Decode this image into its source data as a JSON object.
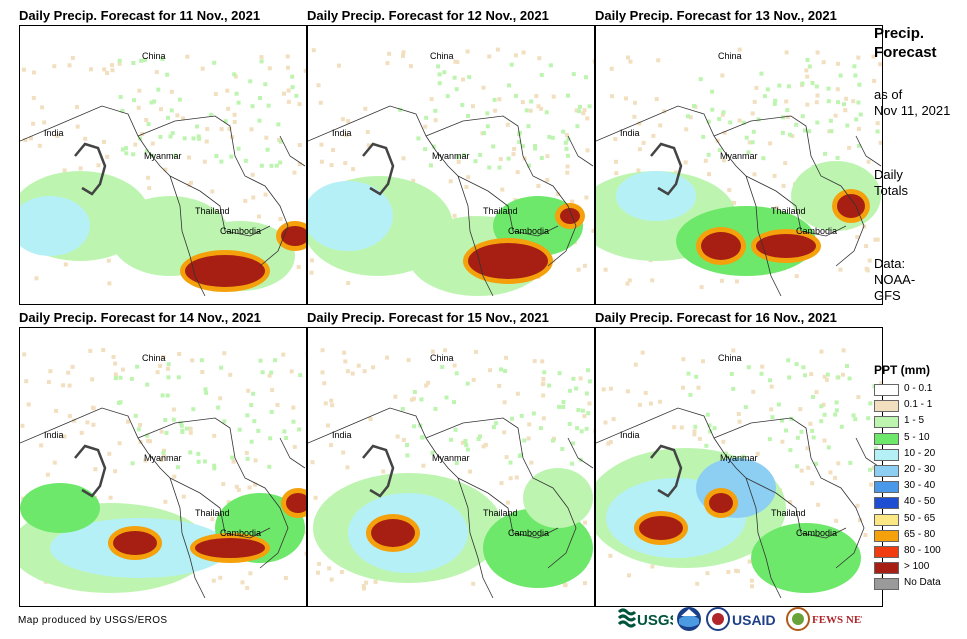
{
  "panels": [
    {
      "title": "Daily Precip. Forecast for 11 Nov., 2021"
    },
    {
      "title": "Daily Precip. Forecast for 12 Nov., 2021"
    },
    {
      "title": "Daily Precip. Forecast for 13 Nov., 2021"
    },
    {
      "title": "Daily Precip. Forecast for 14 Nov., 2021"
    },
    {
      "title": "Daily Precip. Forecast for 15 Nov., 2021"
    },
    {
      "title": "Daily Precip. Forecast for 16 Nov., 2021"
    }
  ],
  "map_labels": {
    "china": "China",
    "india": "India",
    "myanmar": "Myanmar",
    "thailand": "Thailand",
    "cambodia": "Cambodia"
  },
  "sidebar": {
    "title_line1": "Precip.",
    "title_line2": "Forecast",
    "asof_line1": "as of",
    "asof_line2": "Nov 11, 2021",
    "totals_line1": "Daily",
    "totals_line2": "Totals",
    "data_line1": "Data:",
    "data_line2": "NOAA-",
    "data_line3": "GFS"
  },
  "legend": {
    "title": "PPT (mm)",
    "items": [
      {
        "label": "0 - 0.1",
        "color": "#ffffff"
      },
      {
        "label": "0.1 - 1",
        "color": "#f2dfbf"
      },
      {
        "label": "1 - 5",
        "color": "#bdf5b0"
      },
      {
        "label": "5 - 10",
        "color": "#6ee86a"
      },
      {
        "label": "10 - 20",
        "color": "#b5f0f7"
      },
      {
        "label": "20 - 30",
        "color": "#8ccff2"
      },
      {
        "label": "30 - 40",
        "color": "#4a98ea"
      },
      {
        "label": "40 - 50",
        "color": "#1e4fd2"
      },
      {
        "label": "50 - 65",
        "color": "#fbe784"
      },
      {
        "label": "65 - 80",
        "color": "#f4a10c"
      },
      {
        "label": "80 - 100",
        "color": "#f03c10"
      },
      {
        "label": "> 100",
        "color": "#a61f12"
      },
      {
        "label": "No Data",
        "color": "#9a9a9a"
      }
    ]
  },
  "credit": "Map produced by USGS/EROS",
  "logos": {
    "usgs": "USGS",
    "usaid": "USAID",
    "fewsnet": "FEWS NET"
  }
}
